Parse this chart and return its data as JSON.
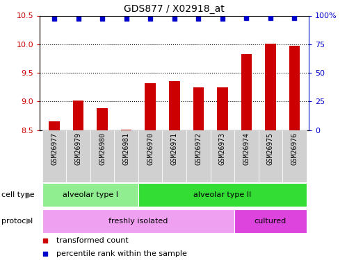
{
  "title": "GDS877 / X02918_at",
  "samples": [
    "GSM26977",
    "GSM26979",
    "GSM26980",
    "GSM26981",
    "GSM26970",
    "GSM26971",
    "GSM26972",
    "GSM26973",
    "GSM26974",
    "GSM26975",
    "GSM26976"
  ],
  "bar_values": [
    8.65,
    9.01,
    8.88,
    8.51,
    9.32,
    9.36,
    9.24,
    9.25,
    9.83,
    10.01,
    9.97
  ],
  "percentile_values": [
    97,
    97,
    97,
    97,
    97,
    97,
    97,
    97,
    98,
    98,
    98
  ],
  "bar_color": "#cc0000",
  "dot_color": "#0000cc",
  "ylim_left": [
    8.5,
    10.5
  ],
  "ylim_right": [
    0,
    100
  ],
  "yticks_left": [
    8.5,
    9.0,
    9.5,
    10.0,
    10.5
  ],
  "yticks_right": [
    0,
    25,
    50,
    75,
    100
  ],
  "right_tick_labels": [
    "0",
    "25",
    "50",
    "75",
    "100%"
  ],
  "grid_values": [
    9.0,
    9.5,
    10.0
  ],
  "cell_type_groups": [
    {
      "label": "alveolar type I",
      "start": 0,
      "end": 3,
      "color": "#90ee90"
    },
    {
      "label": "alveolar type II",
      "start": 4,
      "end": 10,
      "color": "#33dd33"
    }
  ],
  "protocol_groups": [
    {
      "label": "freshly isolated",
      "start": 0,
      "end": 7,
      "color": "#f0a0f0"
    },
    {
      "label": "cultured",
      "start": 8,
      "end": 10,
      "color": "#dd44dd"
    }
  ],
  "cell_type_label": "cell type",
  "protocol_label": "protocol",
  "legend_red_label": "transformed count",
  "legend_blue_label": "percentile rank within the sample",
  "bar_color_red": "#cc0000",
  "dot_color_blue": "#0000cc",
  "sample_bg_color": "#d0d0d0",
  "figsize": [
    4.99,
    3.75
  ],
  "dpi": 100
}
